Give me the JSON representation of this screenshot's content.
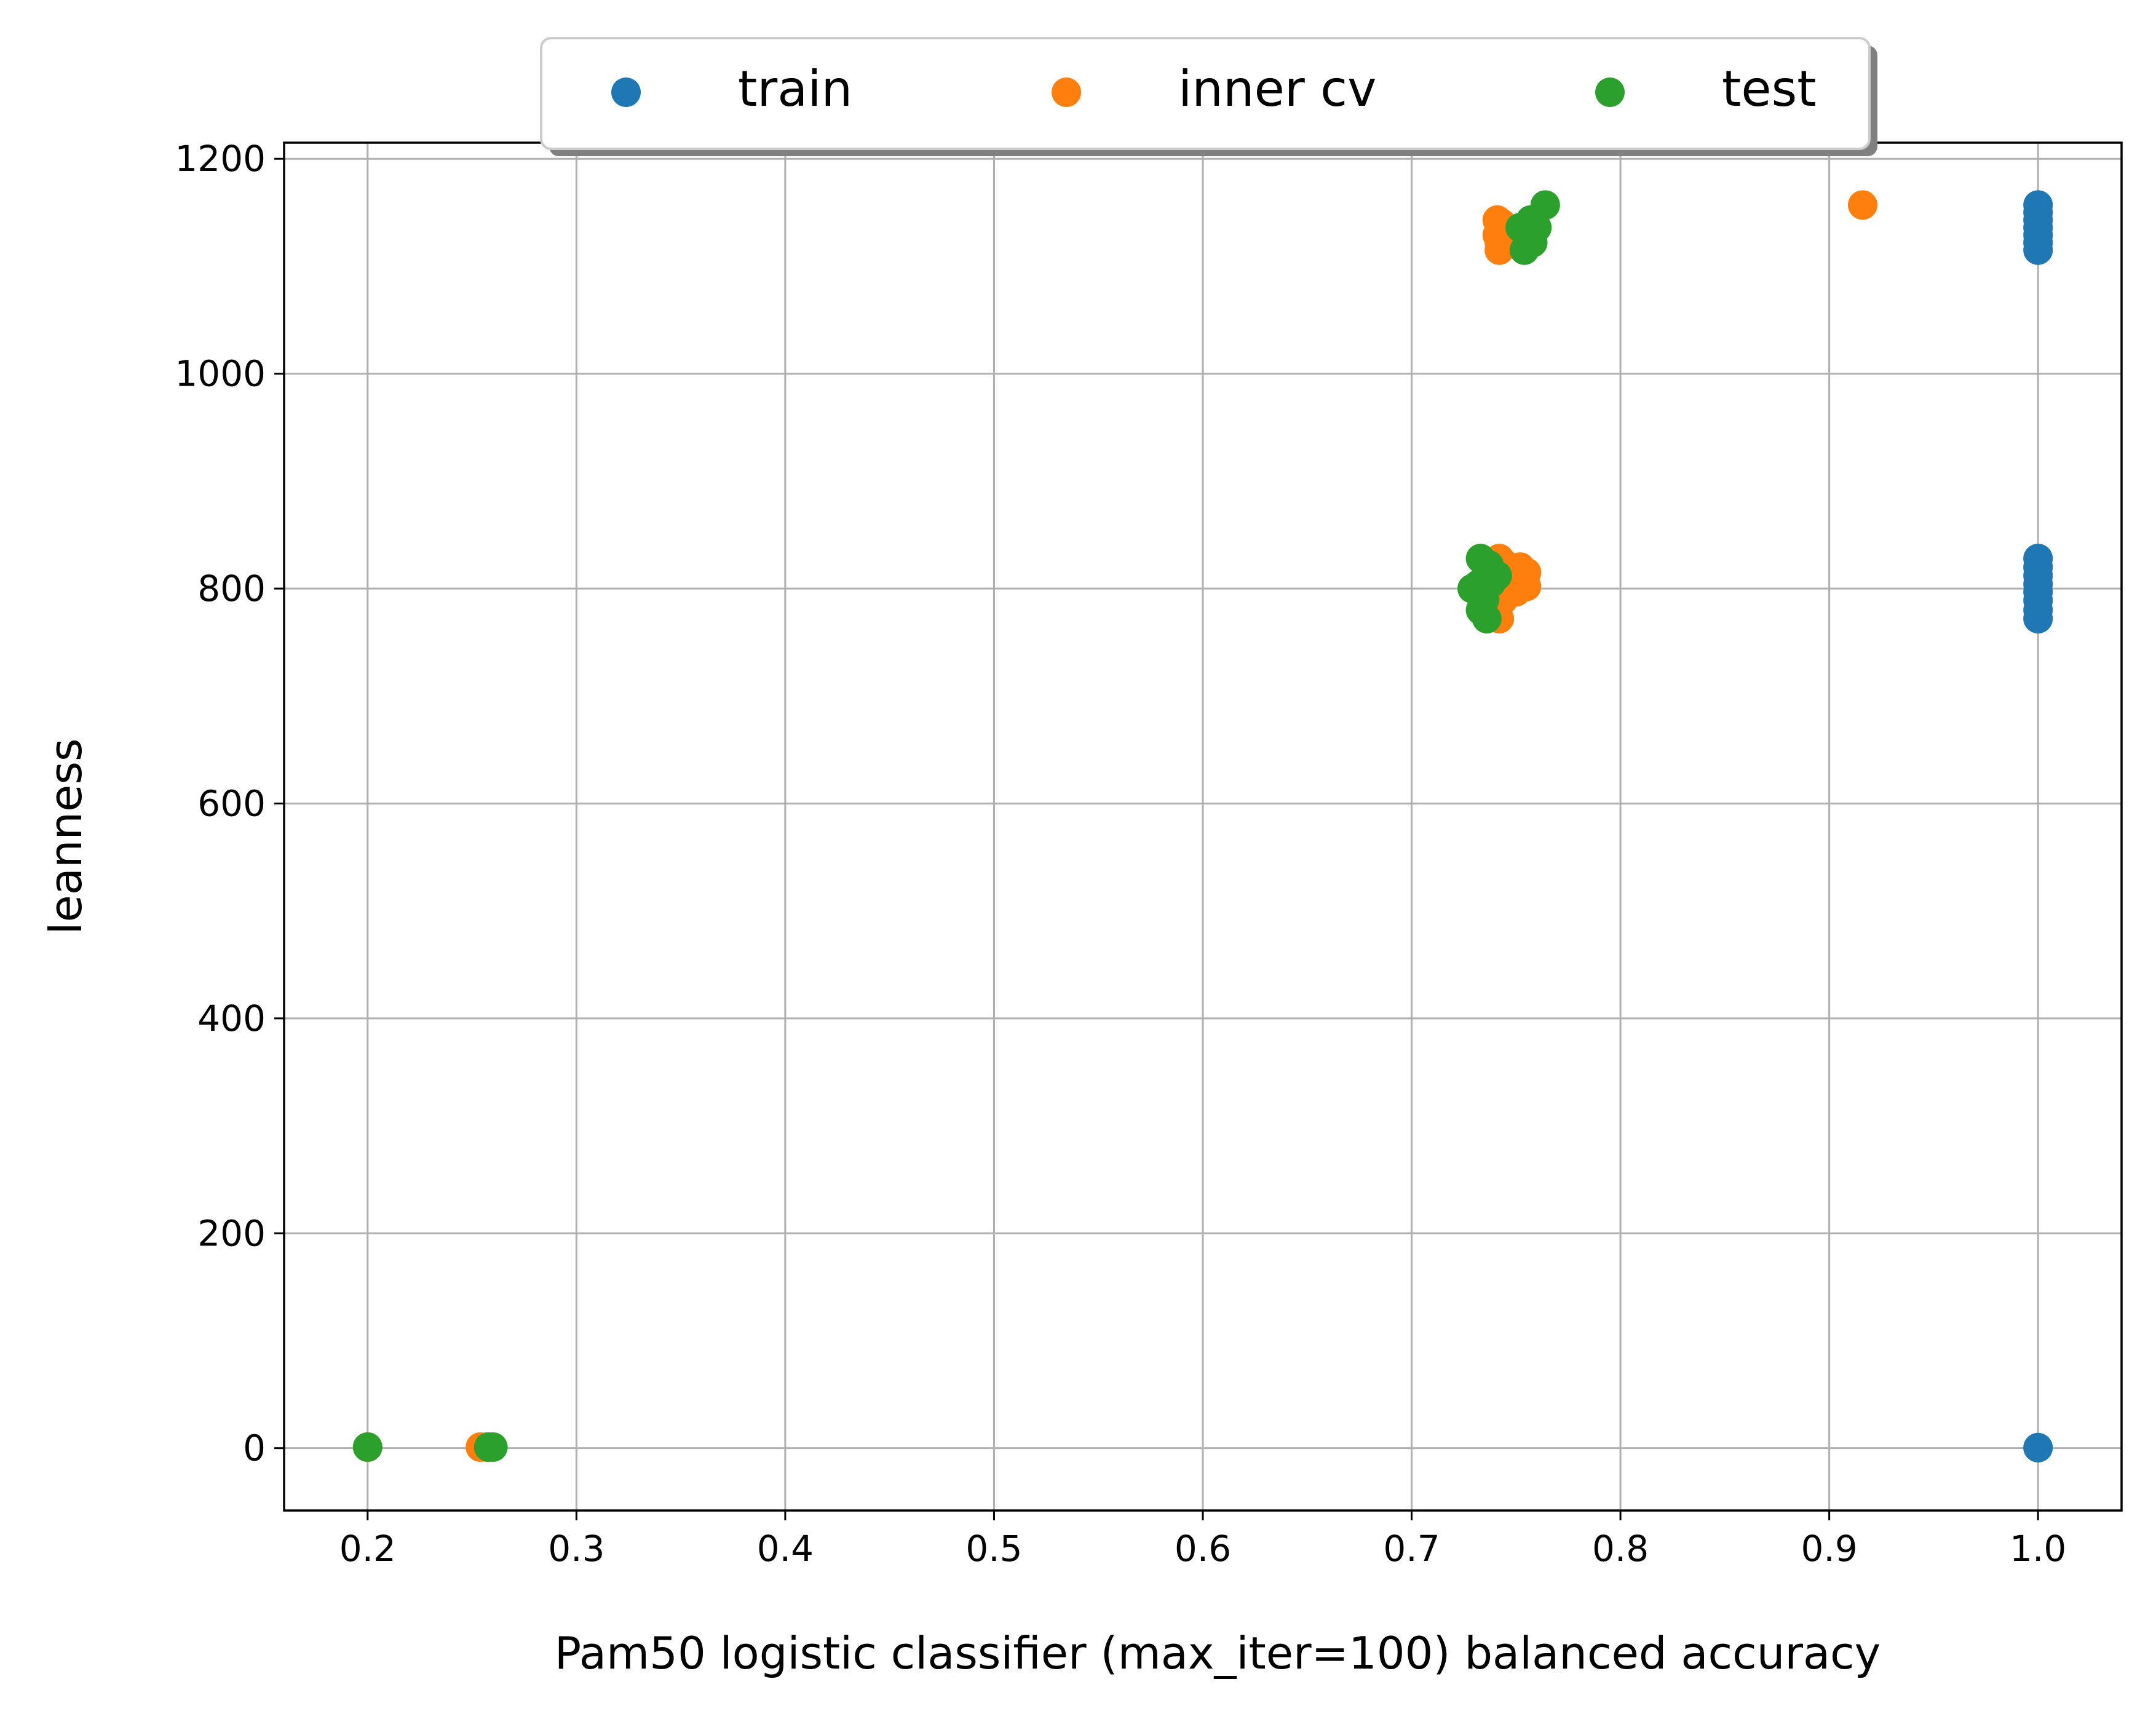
{
  "chart_data": {
    "type": "scatter",
    "title": "",
    "xlabel": "Pam50 logistic classifier (max_iter=100) balanced accuracy",
    "ylabel": "leanness",
    "xlim": [
      0.16,
      1.04
    ],
    "ylim": [
      -58,
      1215
    ],
    "x_ticks": [
      0.2,
      0.3,
      0.4,
      0.5,
      0.6,
      0.7,
      0.8,
      0.9,
      1.0
    ],
    "x_tick_labels": [
      "0.2",
      "0.3",
      "0.4",
      "0.5",
      "0.6",
      "0.7",
      "0.8",
      "0.9",
      "1.0"
    ],
    "y_ticks": [
      0,
      200,
      400,
      600,
      800,
      1000,
      1200
    ],
    "y_tick_labels": [
      "0",
      "200",
      "400",
      "600",
      "800",
      "1000",
      "1200"
    ],
    "grid": true,
    "legend_position": "top-center",
    "series": [
      {
        "name": "train",
        "color": "#1f77b4",
        "points": [
          [
            1.0,
            1157
          ],
          [
            1.0,
            1150
          ],
          [
            1.0,
            1143
          ],
          [
            1.0,
            1136
          ],
          [
            1.0,
            1129
          ],
          [
            1.0,
            1122
          ],
          [
            1.0,
            1115
          ],
          [
            1.0,
            828
          ],
          [
            1.0,
            820
          ],
          [
            1.0,
            812
          ],
          [
            1.0,
            804
          ],
          [
            1.0,
            797
          ],
          [
            1.0,
            789
          ],
          [
            1.0,
            780
          ],
          [
            1.0,
            772
          ],
          [
            1.0,
            0.5
          ]
        ]
      },
      {
        "name": "inner cv",
        "color": "#ff7f0e",
        "points": [
          [
            0.741,
            1143
          ],
          [
            0.742,
            1136
          ],
          [
            0.741,
            1129
          ],
          [
            0.742,
            1122
          ],
          [
            0.742,
            1115
          ],
          [
            0.743,
            1140
          ],
          [
            0.916,
            1157
          ],
          [
            0.742,
            828
          ],
          [
            0.745,
            822
          ],
          [
            0.748,
            815
          ],
          [
            0.752,
            820
          ],
          [
            0.755,
            815
          ],
          [
            0.755,
            802
          ],
          [
            0.75,
            797
          ],
          [
            0.746,
            804
          ],
          [
            0.741,
            786
          ],
          [
            0.742,
            772
          ],
          [
            0.744,
            790
          ],
          [
            0.2,
            1
          ],
          [
            0.254,
            1
          ],
          [
            0.257,
            1
          ]
        ]
      },
      {
        "name": "test",
        "color": "#2ca02c",
        "points": [
          [
            0.764,
            1157
          ],
          [
            0.757,
            1143
          ],
          [
            0.752,
            1136
          ],
          [
            0.755,
            1129
          ],
          [
            0.758,
            1122
          ],
          [
            0.754,
            1115
          ],
          [
            0.76,
            1136
          ],
          [
            0.733,
            828
          ],
          [
            0.737,
            822
          ],
          [
            0.739,
            815
          ],
          [
            0.741,
            812
          ],
          [
            0.732,
            804
          ],
          [
            0.729,
            800
          ],
          [
            0.734,
            797
          ],
          [
            0.735,
            790
          ],
          [
            0.733,
            780
          ],
          [
            0.736,
            772
          ],
          [
            0.738,
            805
          ],
          [
            0.2,
            1
          ],
          [
            0.258,
            1
          ],
          [
            0.26,
            1
          ]
        ]
      }
    ]
  }
}
